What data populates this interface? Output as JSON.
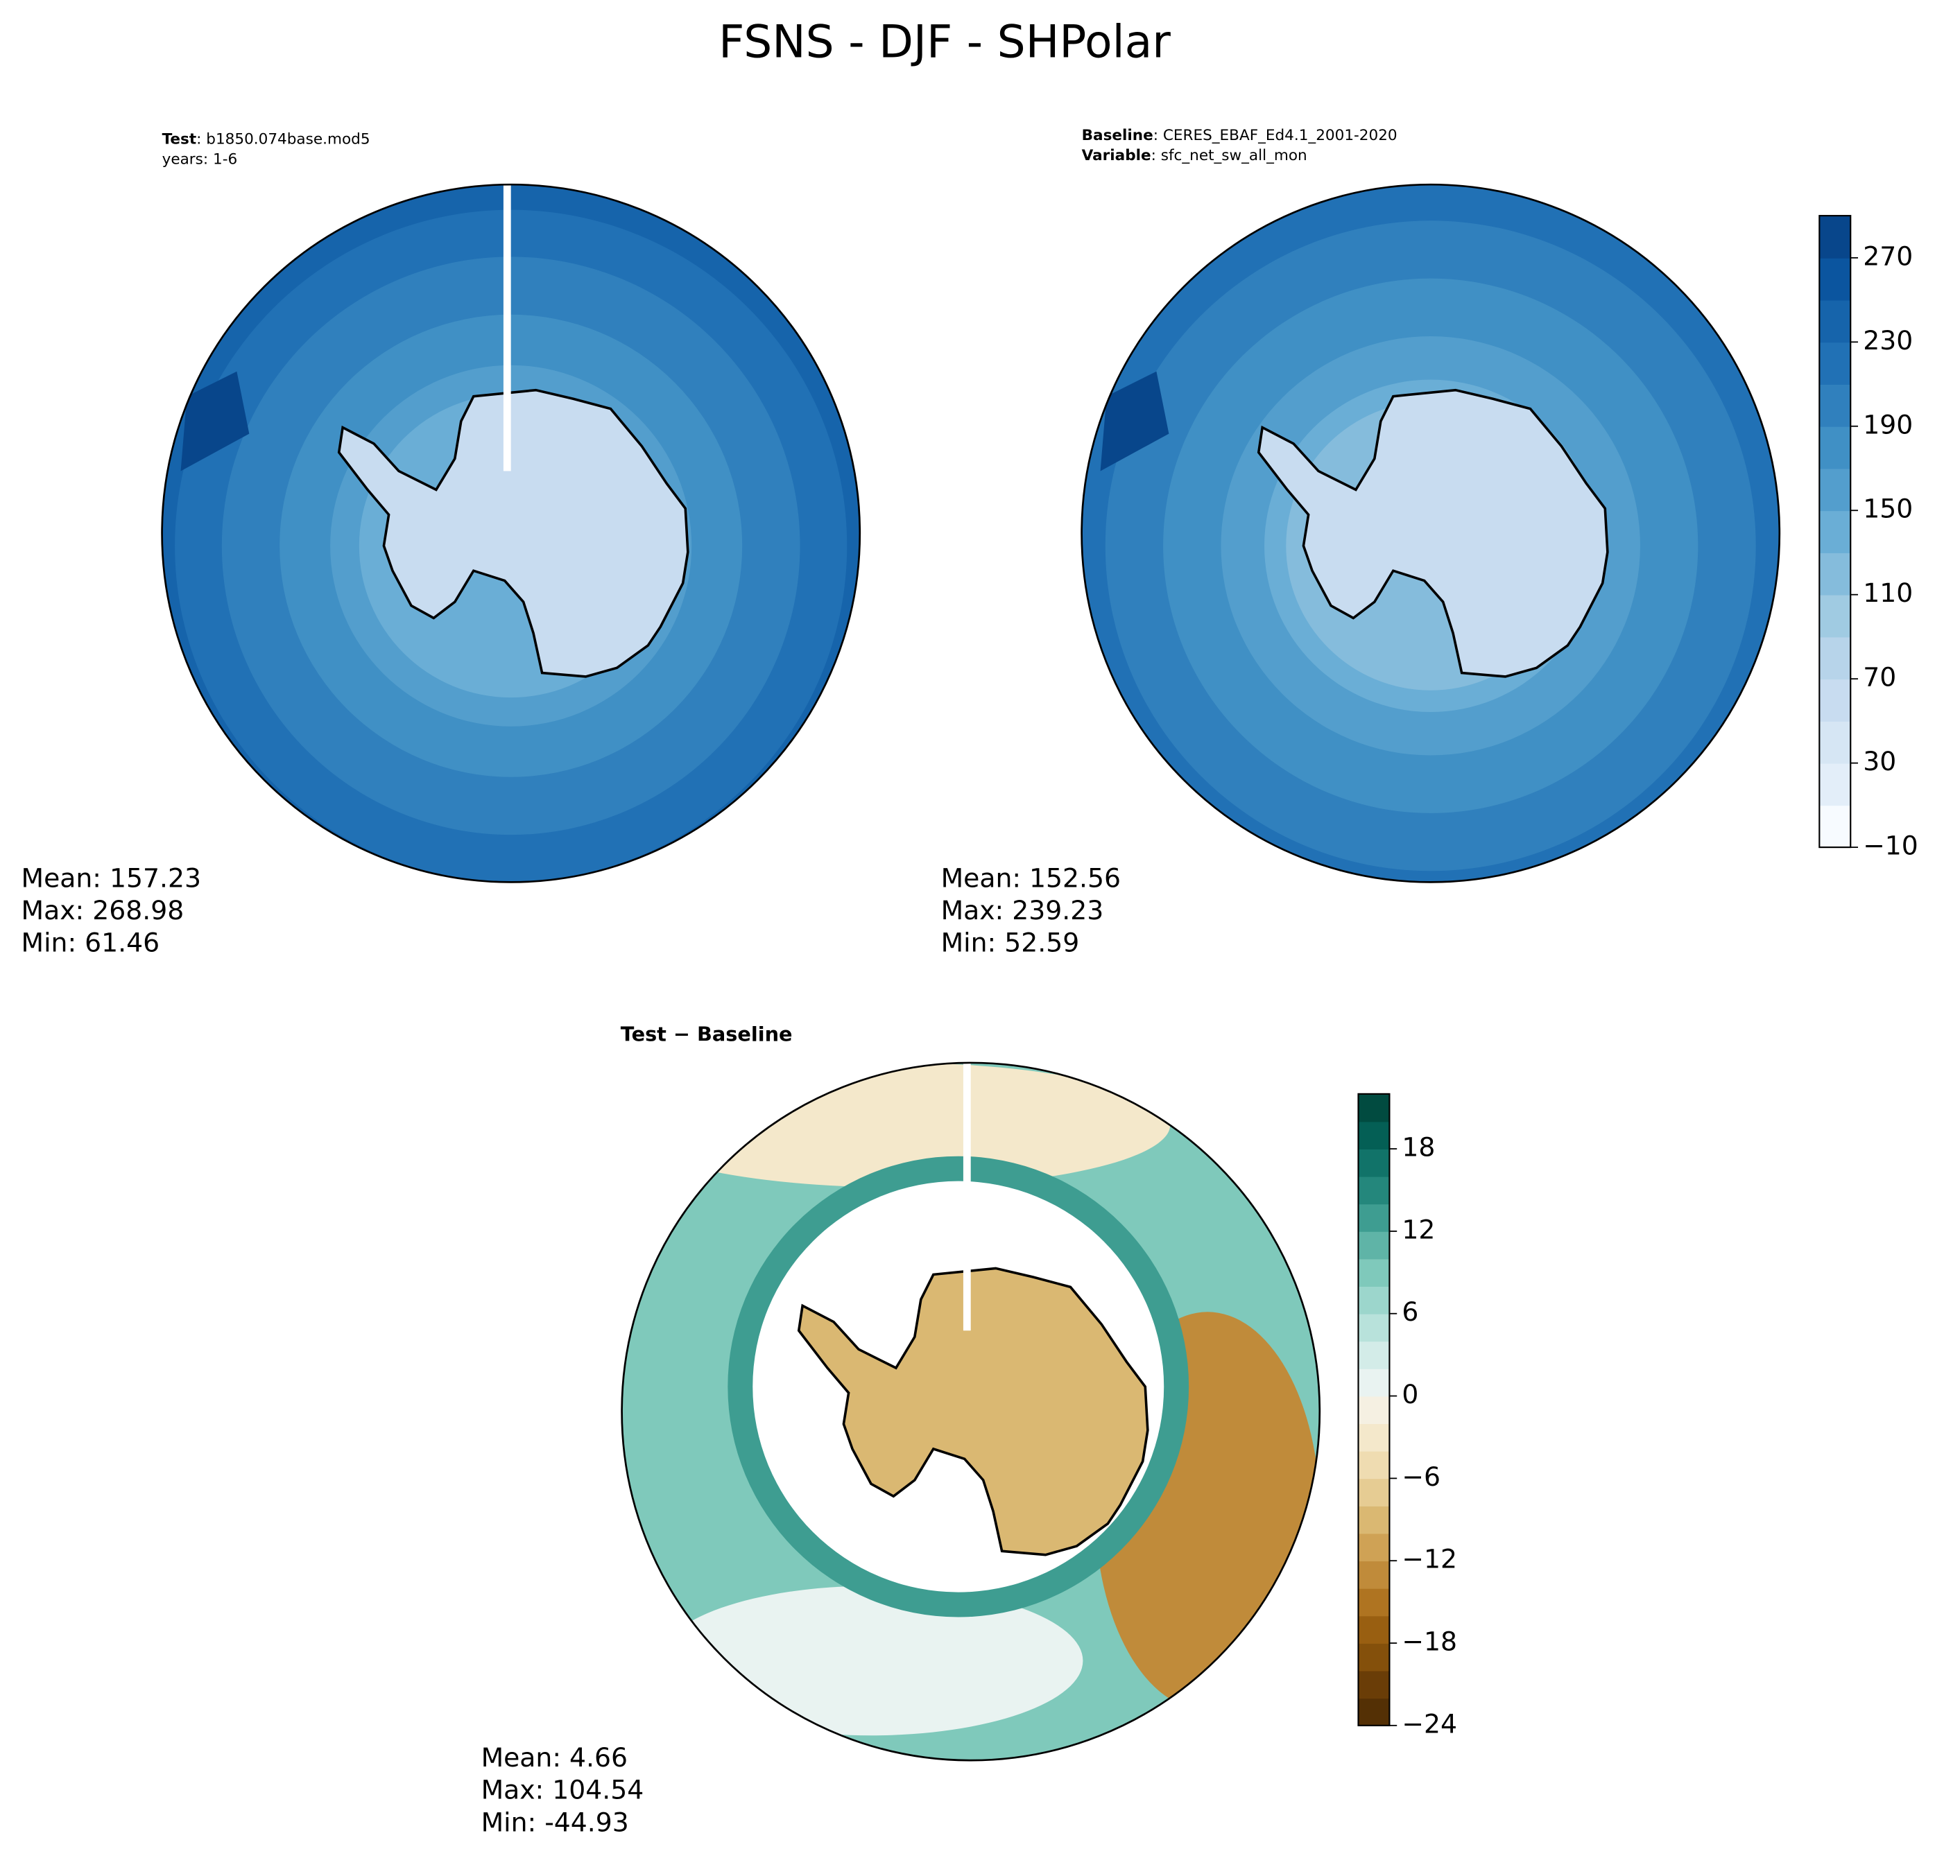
{
  "title": "FSNS - DJF - SHPolar",
  "panels": [
    {
      "header": [
        {
          "label": "Test",
          "text": ": b1850.074base.mod5"
        },
        {
          "text": "years: 1-6"
        }
      ],
      "stats": [
        "Mean: 157.23",
        "Max: 268.98",
        "Min: 61.46"
      ]
    },
    {
      "header": [
        {
          "label": "Baseline",
          "text": ": CERES_EBAF_Ed4.1_2001-2020"
        },
        {
          "label": "Variable",
          "text": ": sfc_net_sw_all_mon"
        }
      ],
      "stats": [
        "Mean: 152.56",
        "Max: 239.23",
        "Min: 52.59"
      ]
    },
    {
      "header": [
        {
          "label": "Test − Baseline"
        }
      ],
      "stats": [
        "Mean:  4.66",
        "Max: 104.54",
        "Min: -44.93"
      ]
    }
  ],
  "colorbars": [
    {
      "range": [
        -10,
        290
      ],
      "ticks": [
        {
          "value": -10,
          "label": "−10"
        },
        30,
        70,
        110,
        150,
        190,
        230,
        270
      ],
      "colors": [
        "#f7fbff",
        "#e3eef9",
        "#d6e6f4",
        "#c8dcf0",
        "#b7d4ea",
        "#a0cbe2",
        "#85bcdc",
        "#6aaed6",
        "#539ecd",
        "#4090c5",
        "#3080bd",
        "#2171b5",
        "#1664ab",
        "#0b559f",
        "#08468b"
      ]
    },
    {
      "range": [
        -24,
        22
      ],
      "ticks": [
        {
          "value": -24,
          "label": "−24"
        },
        {
          "value": -18,
          "label": "−18"
        },
        {
          "value": -12,
          "label": "−12"
        },
        {
          "value": -6,
          "label": "−6"
        },
        0,
        6,
        12,
        18
      ],
      "colors": [
        "#543005",
        "#6a3d07",
        "#84500b",
        "#995f11",
        "#af7421",
        "#c08b3a",
        "#cfa255",
        "#dab872",
        "#e6cc93",
        "#efdcb1",
        "#f4e8cb",
        "#f5f0e2",
        "#e9f3f1",
        "#d3ece8",
        "#b8e2db",
        "#9cd6cc",
        "#7fc9bb",
        "#5fb4a7",
        "#3e9d91",
        "#24877c",
        "#117369",
        "#045f55",
        "#014b40"
      ]
    }
  ]
}
